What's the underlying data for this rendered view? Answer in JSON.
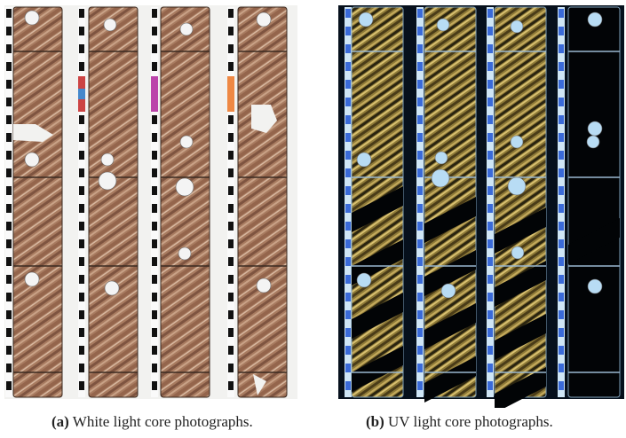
{
  "figure": {
    "panels": [
      {
        "label": "(a)",
        "caption": "White light core photographs."
      },
      {
        "label": "(b)",
        "caption": "UV light core photographs."
      }
    ]
  }
}
